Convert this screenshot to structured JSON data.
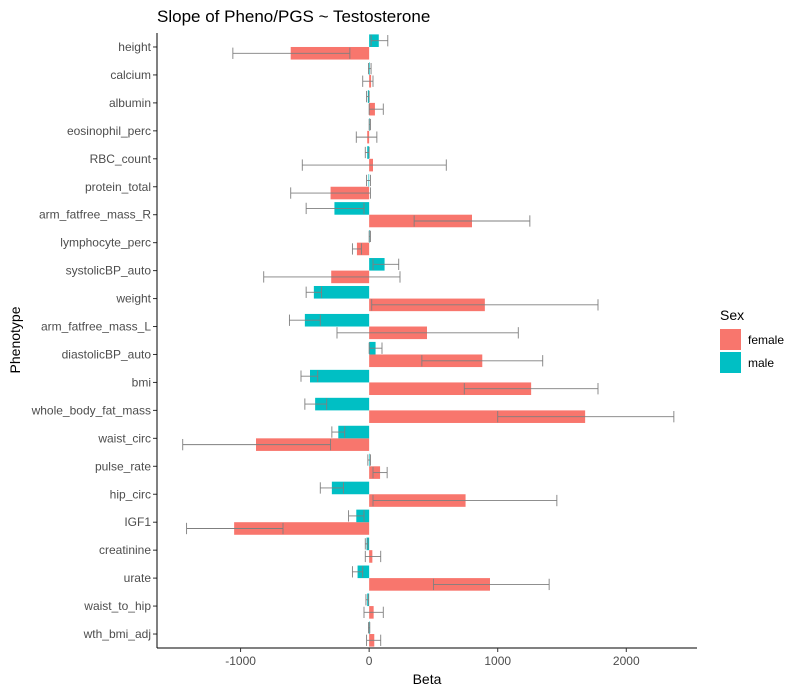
{
  "chart_data": {
    "type": "bar",
    "orientation": "horizontal",
    "title": "Slope of Pheno/PGS ~ Testosterone",
    "xlabel": "Beta",
    "ylabel": "Phenotype",
    "xlim": [
      -1650,
      2550
    ],
    "x_ticks": [
      -1000,
      0,
      1000,
      2000
    ],
    "x_tick_labels": [
      "-1000",
      "0",
      "1000",
      "2000"
    ],
    "grid": false,
    "legend": {
      "title": "Sex",
      "placement": "right"
    },
    "categories": [
      "height",
      "calcium",
      "albumin",
      "eosinophil_perc",
      "RBC_count",
      "protein_total",
      "arm_fatfree_mass_R",
      "lymphocyte_perc",
      "systolicBP_auto",
      "weight",
      "arm_fatfree_mass_L",
      "diastolicBP_auto",
      "bmi",
      "whole_body_fat_mass",
      "waist_circ",
      "pulse_rate",
      "hip_circ",
      "IGF1",
      "creatinine",
      "urate",
      "waist_to_hip",
      "wth_bmi_adj"
    ],
    "series": [
      {
        "name": "female",
        "color": "#F8766D",
        "values": [
          -610,
          15,
          45,
          -15,
          30,
          -300,
          800,
          -95,
          -295,
          900,
          450,
          880,
          1260,
          1680,
          -880,
          85,
          750,
          -1050,
          25,
          940,
          35,
          40
        ],
        "error_low": [
          -1060,
          -50,
          0,
          -100,
          -520,
          -610,
          350,
          -130,
          -820,
          20,
          -250,
          410,
          740,
          1000,
          -1450,
          30,
          30,
          -1420,
          -30,
          500,
          -40,
          -20
        ],
        "error_high": [
          -150,
          30,
          110,
          60,
          600,
          10,
          1250,
          -60,
          240,
          1780,
          1160,
          1350,
          1780,
          2370,
          -300,
          140,
          1460,
          -670,
          90,
          1400,
          110,
          90
        ]
      },
      {
        "name": "male",
        "color": "#00BFC4",
        "values": [
          75,
          5,
          -10,
          5,
          -15,
          -5,
          -270,
          5,
          120,
          -430,
          -500,
          50,
          -460,
          -420,
          -240,
          0,
          -290,
          -100,
          -20,
          -90,
          -15,
          0
        ],
        "error_low": [
          15,
          -5,
          -20,
          0,
          -30,
          -20,
          -490,
          0,
          30,
          -490,
          -620,
          0,
          -530,
          -500,
          -290,
          -10,
          -380,
          -160,
          -30,
          -130,
          -25,
          -5
        ],
        "error_high": [
          145,
          15,
          0,
          10,
          0,
          10,
          -40,
          10,
          230,
          -370,
          -380,
          100,
          -400,
          -330,
          -190,
          10,
          -200,
          -40,
          -10,
          -50,
          -5,
          5
        ]
      }
    ]
  }
}
